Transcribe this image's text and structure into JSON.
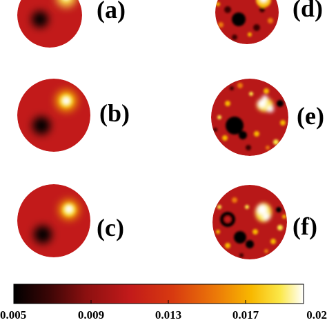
{
  "figure": {
    "panels": [
      {
        "label": "(a)",
        "kind": "smooth"
      },
      {
        "label": "(b)",
        "kind": "smooth"
      },
      {
        "label": "(c)",
        "kind": "smooth"
      },
      {
        "label": "(d)",
        "kind": "noisy"
      },
      {
        "label": "(e)",
        "kind": "noisy"
      },
      {
        "label": "(f)",
        "kind": "noisy"
      }
    ],
    "colorbar": {
      "min": 0.005,
      "max": 0.02,
      "tick_labels": [
        "0.005",
        "0.009",
        "0.013",
        "0.017",
        "0.02"
      ],
      "colormap": [
        "#000000",
        "#3a0606",
        "#8c1010",
        "#c21a1a",
        "#d83a10",
        "#ec7a08",
        "#f8b800",
        "#fbe84a",
        "#ffffff"
      ]
    }
  }
}
